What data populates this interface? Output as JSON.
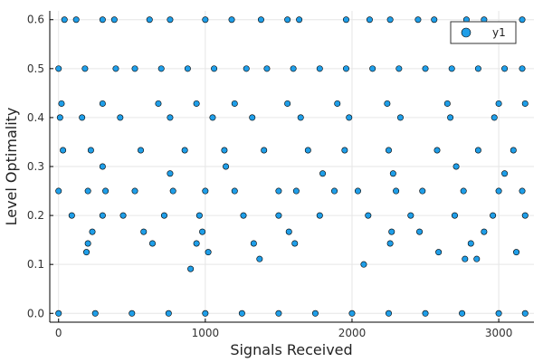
{
  "chart_data": {
    "type": "scatter",
    "title": "",
    "xlabel": "Signals Received",
    "ylabel": "Level Optimality",
    "xlim": [
      -60,
      3240
    ],
    "ylim": [
      -0.018,
      0.618
    ],
    "xticks": [
      0,
      1000,
      2000,
      3000
    ],
    "xtick_labels": [
      "0",
      "1000",
      "2000",
      "3000"
    ],
    "yticks": [
      0.0,
      0.1,
      0.2,
      0.3,
      0.4,
      0.5,
      0.6
    ],
    "ytick_labels": [
      "0.0",
      "0.1",
      "0.2",
      "0.3",
      "0.4",
      "0.5",
      "0.6"
    ],
    "grid": true,
    "legend_position": "top-right",
    "marker_color": "#1f9ee8",
    "marker_edge_color": "#000000",
    "series": [
      {
        "name": "y1",
        "points": [
          [
            40,
            0.6
          ],
          [
            120,
            0.6
          ],
          [
            300,
            0.6
          ],
          [
            380,
            0.6
          ],
          [
            620,
            0.6
          ],
          [
            760,
            0.6
          ],
          [
            1000,
            0.6
          ],
          [
            1180,
            0.6
          ],
          [
            1380,
            0.6
          ],
          [
            1560,
            0.6
          ],
          [
            1640,
            0.6
          ],
          [
            1960,
            0.6
          ],
          [
            2120,
            0.6
          ],
          [
            2260,
            0.6
          ],
          [
            2450,
            0.6
          ],
          [
            2560,
            0.6
          ],
          [
            2780,
            0.6
          ],
          [
            2900,
            0.6
          ],
          [
            3160,
            0.6
          ],
          [
            0,
            0.5
          ],
          [
            180,
            0.5
          ],
          [
            390,
            0.5
          ],
          [
            520,
            0.5
          ],
          [
            700,
            0.5
          ],
          [
            880,
            0.5
          ],
          [
            1060,
            0.5
          ],
          [
            1280,
            0.5
          ],
          [
            1420,
            0.5
          ],
          [
            1600,
            0.5
          ],
          [
            1780,
            0.5
          ],
          [
            1960,
            0.5
          ],
          [
            2140,
            0.5
          ],
          [
            2320,
            0.5
          ],
          [
            2500,
            0.5
          ],
          [
            2680,
            0.5
          ],
          [
            2860,
            0.5
          ],
          [
            3040,
            0.5
          ],
          [
            3160,
            0.5
          ],
          [
            20,
            0.4286
          ],
          [
            300,
            0.4286
          ],
          [
            680,
            0.4286
          ],
          [
            940,
            0.4286
          ],
          [
            1200,
            0.4286
          ],
          [
            1560,
            0.4286
          ],
          [
            1900,
            0.4286
          ],
          [
            2240,
            0.4286
          ],
          [
            2650,
            0.4286
          ],
          [
            3000,
            0.4286
          ],
          [
            3180,
            0.4286
          ],
          [
            10,
            0.4
          ],
          [
            160,
            0.4
          ],
          [
            420,
            0.4
          ],
          [
            760,
            0.4
          ],
          [
            1050,
            0.4
          ],
          [
            1320,
            0.4
          ],
          [
            1650,
            0.4
          ],
          [
            1980,
            0.4
          ],
          [
            2330,
            0.4
          ],
          [
            2670,
            0.4
          ],
          [
            2970,
            0.4
          ],
          [
            30,
            0.3333
          ],
          [
            220,
            0.3333
          ],
          [
            560,
            0.3333
          ],
          [
            860,
            0.3333
          ],
          [
            1130,
            0.3333
          ],
          [
            1400,
            0.3333
          ],
          [
            1700,
            0.3333
          ],
          [
            1950,
            0.3333
          ],
          [
            2250,
            0.3333
          ],
          [
            2580,
            0.3333
          ],
          [
            2860,
            0.3333
          ],
          [
            3100,
            0.3333
          ],
          [
            300,
            0.3
          ],
          [
            760,
            0.2857
          ],
          [
            1140,
            0.3
          ],
          [
            1800,
            0.2857
          ],
          [
            2280,
            0.2857
          ],
          [
            2710,
            0.3
          ],
          [
            3040,
            0.2857
          ],
          [
            0,
            0.25
          ],
          [
            200,
            0.25
          ],
          [
            320,
            0.25
          ],
          [
            520,
            0.25
          ],
          [
            780,
            0.25
          ],
          [
            1000,
            0.25
          ],
          [
            1200,
            0.25
          ],
          [
            1500,
            0.25
          ],
          [
            1620,
            0.25
          ],
          [
            1880,
            0.25
          ],
          [
            2040,
            0.25
          ],
          [
            2300,
            0.25
          ],
          [
            2480,
            0.25
          ],
          [
            2760,
            0.25
          ],
          [
            3000,
            0.25
          ],
          [
            3160,
            0.25
          ],
          [
            90,
            0.2
          ],
          [
            300,
            0.2
          ],
          [
            440,
            0.2
          ],
          [
            720,
            0.2
          ],
          [
            960,
            0.2
          ],
          [
            1260,
            0.2
          ],
          [
            1500,
            0.2
          ],
          [
            1780,
            0.2
          ],
          [
            2110,
            0.2
          ],
          [
            2400,
            0.2
          ],
          [
            2700,
            0.2
          ],
          [
            2960,
            0.2
          ],
          [
            3180,
            0.2
          ],
          [
            230,
            0.1667
          ],
          [
            580,
            0.1667
          ],
          [
            980,
            0.1667
          ],
          [
            1570,
            0.1667
          ],
          [
            2270,
            0.1667
          ],
          [
            2460,
            0.1667
          ],
          [
            2900,
            0.1667
          ],
          [
            200,
            0.1429
          ],
          [
            640,
            0.1429
          ],
          [
            940,
            0.1429
          ],
          [
            1330,
            0.1429
          ],
          [
            1610,
            0.1429
          ],
          [
            2260,
            0.1429
          ],
          [
            2810,
            0.1429
          ],
          [
            190,
            0.125
          ],
          [
            1020,
            0.125
          ],
          [
            2590,
            0.125
          ],
          [
            3120,
            0.125
          ],
          [
            900,
            0.0909
          ],
          [
            1370,
            0.1111
          ],
          [
            2080,
            0.1
          ],
          [
            2770,
            0.1111
          ],
          [
            2850,
            0.1111
          ],
          [
            0,
            0.0
          ],
          [
            250,
            0.0
          ],
          [
            500,
            0.0
          ],
          [
            750,
            0.0
          ],
          [
            1000,
            0.0
          ],
          [
            1250,
            0.0
          ],
          [
            1500,
            0.0
          ],
          [
            1750,
            0.0
          ],
          [
            2000,
            0.0
          ],
          [
            2250,
            0.0
          ],
          [
            2500,
            0.0
          ],
          [
            2750,
            0.0
          ],
          [
            3000,
            0.0
          ],
          [
            3180,
            0.0
          ]
        ]
      }
    ]
  }
}
